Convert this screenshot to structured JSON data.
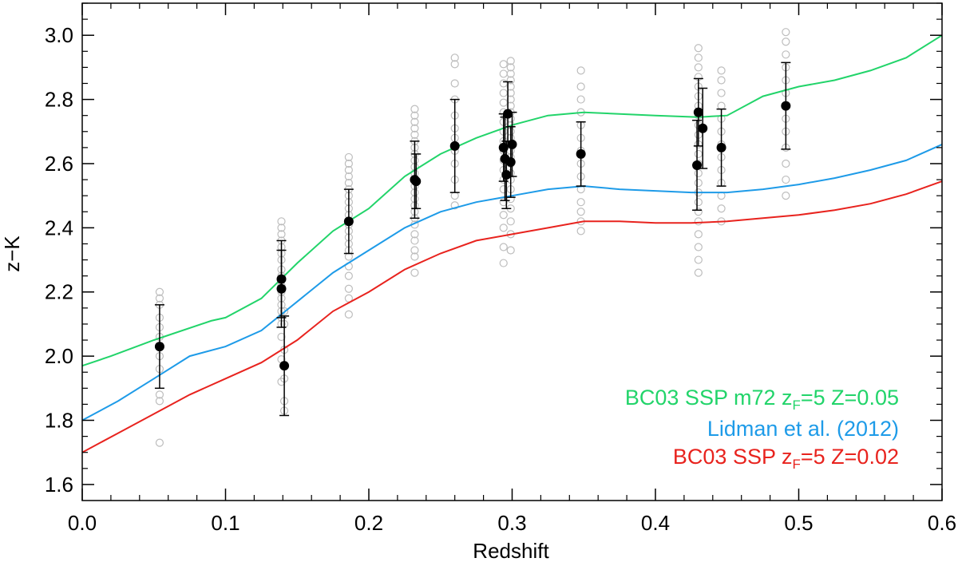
{
  "chart_data": {
    "type": "scatter",
    "xlabel": "Redshift",
    "ylabel": "z−K",
    "xlim": [
      0.0,
      0.6
    ],
    "ylim": [
      1.55,
      3.1
    ],
    "xticks": [
      {
        "value": 0.0,
        "label": "0.0"
      },
      {
        "value": 0.1,
        "label": "0.1"
      },
      {
        "value": 0.2,
        "label": "0.2"
      },
      {
        "value": 0.3,
        "label": "0.3"
      },
      {
        "value": 0.4,
        "label": "0.4"
      },
      {
        "value": 0.5,
        "label": "0.5"
      },
      {
        "value": 0.6,
        "label": "0.6"
      }
    ],
    "yticks": [
      {
        "value": 1.6,
        "label": "1.6"
      },
      {
        "value": 1.8,
        "label": "1.8"
      },
      {
        "value": 2.0,
        "label": "2.0"
      },
      {
        "value": 2.2,
        "label": "2.2"
      },
      {
        "value": 2.4,
        "label": "2.4"
      },
      {
        "value": 2.6,
        "label": "2.6"
      },
      {
        "value": 2.8,
        "label": "2.8"
      },
      {
        "value": 3.0,
        "label": "3.0"
      }
    ],
    "series": [
      {
        "name": "BC03 SSP m72 zF=5 Z=0.05",
        "color": "#22d46a",
        "x": [
          0.0,
          0.02,
          0.05,
          0.09,
          0.1,
          0.125,
          0.15,
          0.175,
          0.2,
          0.225,
          0.25,
          0.275,
          0.3,
          0.325,
          0.35,
          0.375,
          0.4,
          0.43,
          0.45,
          0.475,
          0.5,
          0.525,
          0.55,
          0.575,
          0.6
        ],
        "y": [
          1.97,
          2.0,
          2.05,
          2.11,
          2.12,
          2.18,
          2.29,
          2.39,
          2.46,
          2.56,
          2.63,
          2.68,
          2.72,
          2.75,
          2.76,
          2.755,
          2.75,
          2.745,
          2.75,
          2.81,
          2.84,
          2.86,
          2.89,
          2.93,
          3.0
        ]
      },
      {
        "name": "Lidman et al. (2012)",
        "color": "#1e9be8",
        "x": [
          0.0,
          0.025,
          0.05,
          0.075,
          0.1,
          0.125,
          0.15,
          0.175,
          0.2,
          0.225,
          0.25,
          0.275,
          0.3,
          0.325,
          0.35,
          0.375,
          0.4,
          0.425,
          0.45,
          0.475,
          0.5,
          0.525,
          0.55,
          0.575,
          0.6
        ],
        "y": [
          1.8,
          1.86,
          1.93,
          2.0,
          2.03,
          2.08,
          2.17,
          2.26,
          2.33,
          2.4,
          2.45,
          2.48,
          2.5,
          2.52,
          2.53,
          2.52,
          2.515,
          2.51,
          2.51,
          2.52,
          2.535,
          2.555,
          2.58,
          2.61,
          2.66
        ]
      },
      {
        "name": "BC03 SSP zF=5 Z=0.02",
        "color": "#e8231e",
        "x": [
          0.0,
          0.025,
          0.05,
          0.075,
          0.1,
          0.125,
          0.15,
          0.175,
          0.2,
          0.225,
          0.25,
          0.275,
          0.3,
          0.325,
          0.35,
          0.375,
          0.4,
          0.425,
          0.45,
          0.475,
          0.5,
          0.525,
          0.55,
          0.575,
          0.6
        ],
        "y": [
          1.7,
          1.76,
          1.82,
          1.88,
          1.93,
          1.98,
          2.05,
          2.14,
          2.2,
          2.27,
          2.32,
          2.36,
          2.38,
          2.4,
          2.42,
          2.42,
          2.415,
          2.415,
          2.42,
          2.43,
          2.44,
          2.455,
          2.475,
          2.505,
          2.545
        ]
      }
    ],
    "cluster_means": [
      {
        "x": 0.054,
        "y": 2.03,
        "err": 0.13
      },
      {
        "x": 0.139,
        "y": 2.24,
        "err": 0.12
      },
      {
        "x": 0.139,
        "y": 2.21,
        "err": 0.12
      },
      {
        "x": 0.141,
        "y": 1.97,
        "err": 0.155
      },
      {
        "x": 0.186,
        "y": 2.42,
        "err": 0.1
      },
      {
        "x": 0.232,
        "y": 2.55,
        "err": 0.12
      },
      {
        "x": 0.233,
        "y": 2.545,
        "err": 0.085
      },
      {
        "x": 0.26,
        "y": 2.655,
        "err": 0.145
      },
      {
        "x": 0.294,
        "y": 2.65,
        "err": 0.105
      },
      {
        "x": 0.295,
        "y": 2.615,
        "err": 0.13
      },
      {
        "x": 0.296,
        "y": 2.565,
        "err": 0.105
      },
      {
        "x": 0.297,
        "y": 2.755,
        "err": 0.1
      },
      {
        "x": 0.299,
        "y": 2.605,
        "err": 0.11
      },
      {
        "x": 0.3,
        "y": 2.66,
        "err": 0.1
      },
      {
        "x": 0.348,
        "y": 2.63,
        "err": 0.1
      },
      {
        "x": 0.429,
        "y": 2.595,
        "err": 0.14
      },
      {
        "x": 0.43,
        "y": 2.76,
        "err": 0.105
      },
      {
        "x": 0.433,
        "y": 2.71,
        "err": 0.125
      },
      {
        "x": 0.446,
        "y": 2.65,
        "err": 0.12
      },
      {
        "x": 0.491,
        "y": 2.78,
        "err": 0.135
      }
    ],
    "galaxies": [
      {
        "x": 0.054,
        "y": [
          1.73,
          1.86,
          1.88,
          1.96,
          2.0,
          2.06,
          2.09,
          2.12,
          2.16,
          2.18,
          2.2
        ]
      },
      {
        "x": 0.139,
        "y": [
          1.92,
          1.99,
          2.06,
          2.1,
          2.12,
          2.14,
          2.16,
          2.18,
          2.2,
          2.22,
          2.25,
          2.27,
          2.3,
          2.32,
          2.34,
          2.36,
          2.38,
          2.4,
          2.42
        ]
      },
      {
        "x": 0.141,
        "y": [
          1.83,
          1.86,
          1.93,
          2.02,
          2.1,
          2.14
        ]
      },
      {
        "x": 0.186,
        "y": [
          2.13,
          2.18,
          2.21,
          2.25,
          2.28,
          2.31,
          2.33,
          2.35,
          2.37,
          2.39,
          2.41,
          2.42,
          2.44,
          2.46,
          2.48,
          2.5,
          2.52,
          2.54,
          2.56,
          2.58,
          2.6,
          2.62
        ]
      },
      {
        "x": 0.232,
        "y": [
          2.26,
          2.31,
          2.33,
          2.36,
          2.38,
          2.41,
          2.43,
          2.45,
          2.47,
          2.49,
          2.51,
          2.53,
          2.55,
          2.57,
          2.59,
          2.61,
          2.63,
          2.65,
          2.67,
          2.69,
          2.71,
          2.73,
          2.75,
          2.77
        ]
      },
      {
        "x": 0.26,
        "y": [
          2.47,
          2.5,
          2.55,
          2.6,
          2.64,
          2.68,
          2.71,
          2.75,
          2.8,
          2.85,
          2.91,
          2.93
        ]
      },
      {
        "x": 0.294,
        "y": [
          2.29,
          2.34,
          2.4,
          2.44,
          2.48,
          2.52,
          2.55,
          2.58,
          2.61,
          2.64,
          2.67,
          2.7,
          2.73,
          2.76,
          2.79,
          2.82,
          2.85,
          2.88,
          2.91
        ]
      },
      {
        "x": 0.299,
        "y": [
          2.33,
          2.38,
          2.42,
          2.46,
          2.49,
          2.52,
          2.55,
          2.57,
          2.6,
          2.62,
          2.64,
          2.66,
          2.68,
          2.7,
          2.72,
          2.74,
          2.76,
          2.78,
          2.8,
          2.82,
          2.84,
          2.86,
          2.88,
          2.9,
          2.92
        ]
      },
      {
        "x": 0.348,
        "y": [
          2.39,
          2.42,
          2.45,
          2.48,
          2.52,
          2.56,
          2.6,
          2.64,
          2.68,
          2.72,
          2.76,
          2.8,
          2.84,
          2.89
        ]
      },
      {
        "x": 0.43,
        "y": [
          2.26,
          2.3,
          2.34,
          2.38,
          2.42,
          2.45,
          2.48,
          2.51,
          2.54,
          2.57,
          2.6,
          2.63,
          2.66,
          2.69,
          2.72,
          2.75,
          2.78,
          2.81,
          2.84,
          2.87,
          2.9,
          2.93,
          2.96
        ]
      },
      {
        "x": 0.446,
        "y": [
          2.42,
          2.46,
          2.5,
          2.54,
          2.58,
          2.62,
          2.66,
          2.7,
          2.74,
          2.78,
          2.82,
          2.86,
          2.89
        ]
      },
      {
        "x": 0.491,
        "y": [
          2.5,
          2.55,
          2.6,
          2.65,
          2.7,
          2.74,
          2.78,
          2.82,
          2.86,
          2.9,
          2.94,
          2.98,
          3.01
        ]
      }
    ],
    "legend": {
      "position": "bottom-right",
      "entries": [
        {
          "prefix": "BC03 SSP m72 z",
          "sub": "F",
          "suffix": "=5 Z=0.05",
          "color": "#22d46a"
        },
        {
          "prefix": "Lidman et al. (2012)",
          "sub": "",
          "suffix": "",
          "color": "#1e9be8"
        },
        {
          "prefix": "BC03 SSP z",
          "sub": "F",
          "suffix": "=5 Z=0.02",
          "color": "#e8231e"
        }
      ]
    }
  }
}
